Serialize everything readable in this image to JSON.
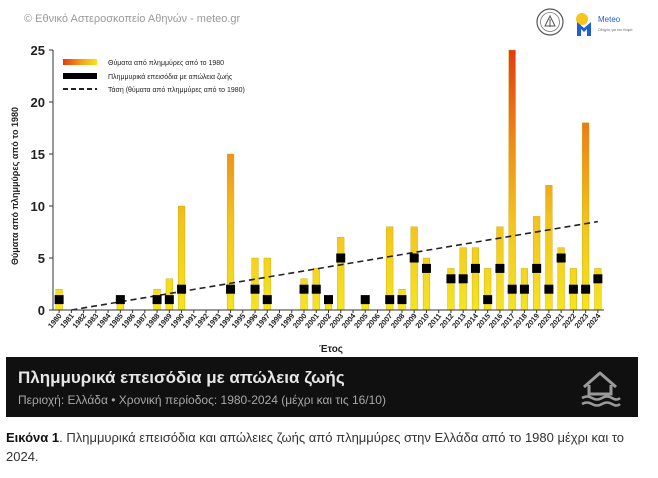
{
  "header": {
    "copyright": "© Εθνικό Αστεροσκοπείο Αθηνών - meteo.gr",
    "logo_name": "Meteo",
    "logo_tagline": "Οδηγός για τον Καιρό"
  },
  "colors": {
    "bar_low": "#f5e51f",
    "bar_high": "#e23a12",
    "marker": "#000000",
    "trend": "#222222",
    "banner_bg": "#101010",
    "accent_blue": "#1e5ed6"
  },
  "chart_data": {
    "type": "bar",
    "title": "",
    "xlabel": "Έτος",
    "ylabel": "Θύματα από πλημμύρες από το 1980",
    "ylim": [
      0,
      25
    ],
    "yticks": [
      0,
      5,
      10,
      15,
      20,
      25
    ],
    "grid": false,
    "categories": [
      "1980",
      "1981",
      "1982",
      "1983",
      "1984",
      "1985",
      "1986",
      "1987",
      "1988",
      "1989",
      "1990",
      "1991",
      "1992",
      "1993",
      "1994",
      "1995",
      "1996",
      "1997",
      "1998",
      "1999",
      "2000",
      "2001",
      "2002",
      "2003",
      "2004",
      "2005",
      "2006",
      "2007",
      "2008",
      "2009",
      "2010",
      "2011",
      "2012",
      "2013",
      "2014",
      "2015",
      "2016",
      "2017",
      "2018",
      "2019",
      "2020",
      "2021",
      "2022",
      "2023",
      "2024"
    ],
    "series": [
      {
        "name": "Θύματα από πλημμύρες από το 1980",
        "kind": "bar",
        "values": [
          2,
          0,
          0,
          0,
          0,
          1,
          0,
          0,
          2,
          3,
          10,
          0,
          0,
          0,
          15,
          0,
          5,
          5,
          0,
          0,
          3,
          4,
          1,
          7,
          0,
          1,
          0,
          8,
          2,
          8,
          5,
          0,
          4,
          6,
          6,
          4,
          8,
          25,
          4,
          9,
          12,
          6,
          4,
          18,
          4
        ]
      },
      {
        "name": "Πλημμυρικά επεισόδια με απώλεια ζωής",
        "kind": "marker",
        "values": [
          1,
          0,
          0,
          0,
          0,
          1,
          0,
          0,
          1,
          1,
          2,
          0,
          0,
          0,
          2,
          0,
          2,
          1,
          0,
          0,
          2,
          2,
          1,
          5,
          0,
          1,
          0,
          1,
          1,
          5,
          4,
          0,
          3,
          3,
          4,
          1,
          4,
          2,
          2,
          4,
          2,
          5,
          2,
          2,
          3
        ]
      },
      {
        "name": "Τάση (θύματα από πλημμύρες από το 1980)",
        "kind": "trend",
        "start": 0,
        "end": 8.5
      }
    ],
    "legend_position": "top-left"
  },
  "banner": {
    "title": "Πλημμυρικά επεισόδια με απώλεια ζωής",
    "subtitle": "Περιοχή: Ελλάδα • Χρονική περίοδος: 1980-2024 (μέχρι και τις 16/10)",
    "icon": "flood-house-icon"
  },
  "caption": {
    "label": "Εικόνα 1",
    "text": ". Πλημμυρικά επεισόδια και απώλειες ζωής από πλημμύρες στην Ελλάδα από το 1980 μέχρι και το 2024."
  }
}
